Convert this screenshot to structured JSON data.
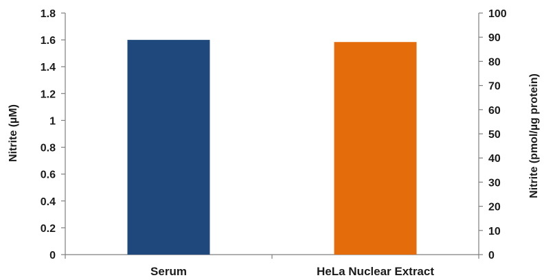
{
  "chart_data": {
    "type": "bar",
    "categories": [
      "Serum",
      "HeLa Nuclear Extract"
    ],
    "series": [
      {
        "axis": "left",
        "values": [
          1.6,
          null
        ],
        "color": "#1f497d"
      },
      {
        "axis": "right",
        "values": [
          null,
          88
        ],
        "color": "#e46c0a"
      }
    ],
    "left_axis": {
      "label": "Nitrite (µM)",
      "ylim": [
        0,
        1.8
      ],
      "ticks": [
        0,
        0.2,
        0.4,
        0.6,
        0.8,
        1,
        1.2,
        1.4,
        1.6,
        1.8
      ],
      "tick_labels": [
        "0",
        "0.2",
        "0.4",
        "0.6",
        "0.8",
        "1",
        "1.2",
        "1.4",
        "1.6",
        "1.8"
      ]
    },
    "right_axis": {
      "label": "Nitrite (pmol/µg protein)",
      "ylim": [
        0,
        100
      ],
      "ticks": [
        0,
        10,
        20,
        30,
        40,
        50,
        60,
        70,
        80,
        90,
        100
      ],
      "tick_labels": [
        "0",
        "10",
        "20",
        "30",
        "40",
        "50",
        "60",
        "70",
        "80",
        "90",
        "100"
      ]
    },
    "grid": false,
    "legend": "none"
  }
}
